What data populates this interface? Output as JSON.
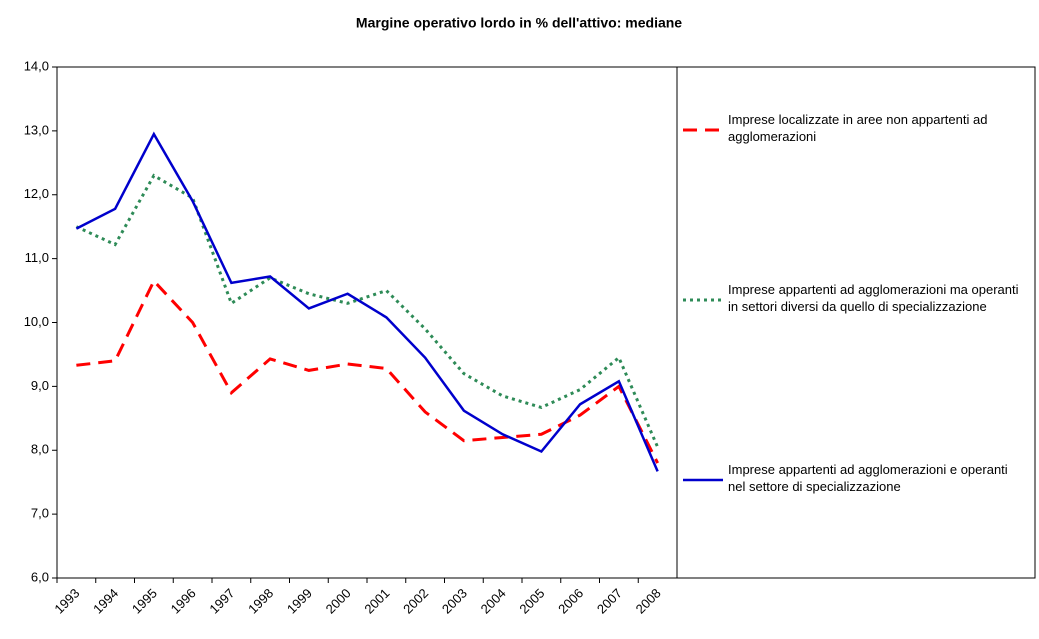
{
  "chart_data": {
    "type": "line",
    "title": "Margine operativo lordo in % dell'attivo: mediane",
    "categories": [
      "1993",
      "1994",
      "1995",
      "1996",
      "1997",
      "1998",
      "1999",
      "2000",
      "2001",
      "2002",
      "2003",
      "2004",
      "2005",
      "2006",
      "2007",
      "2008"
    ],
    "series": [
      {
        "name": "Imprese localizzate in aree non appartenti ad agglomerazioni",
        "color": "#ff0000",
        "style": "dashed",
        "values": [
          9.33,
          9.4,
          10.65,
          10.0,
          8.9,
          9.43,
          9.25,
          9.35,
          9.28,
          8.6,
          8.15,
          8.2,
          8.25,
          8.55,
          9.0,
          7.8
        ]
      },
      {
        "name": "Imprese appartenti ad agglomerazioni ma operanti in settori diversi da quello di specializzazione",
        "color": "#2e8b57",
        "style": "dotted",
        "values": [
          11.5,
          11.22,
          12.3,
          11.95,
          10.3,
          10.7,
          10.45,
          10.3,
          10.5,
          9.9,
          9.2,
          8.85,
          8.67,
          8.95,
          9.45,
          8.05
        ]
      },
      {
        "name": "Imprese appartenti ad agglomerazioni e operanti nel settore di specializzazione",
        "color": "#0000cc",
        "style": "solid",
        "values": [
          11.47,
          11.78,
          12.95,
          11.9,
          10.62,
          10.72,
          10.22,
          10.45,
          10.08,
          9.45,
          8.62,
          8.25,
          7.98,
          8.72,
          9.08,
          7.67
        ]
      }
    ],
    "ylim": [
      6,
      14
    ],
    "yticks": [
      {
        "value": 6,
        "label": "6,0"
      },
      {
        "value": 7,
        "label": "7,0"
      },
      {
        "value": 8,
        "label": "8,0"
      },
      {
        "value": 9,
        "label": "9,0"
      },
      {
        "value": 10,
        "label": "10,0"
      },
      {
        "value": 11,
        "label": "11,0"
      },
      {
        "value": 12,
        "label": "12,0"
      },
      {
        "value": 13,
        "label": "13,0"
      },
      {
        "value": 14,
        "label": "14,0"
      }
    ],
    "grid": false,
    "legend": "right"
  }
}
